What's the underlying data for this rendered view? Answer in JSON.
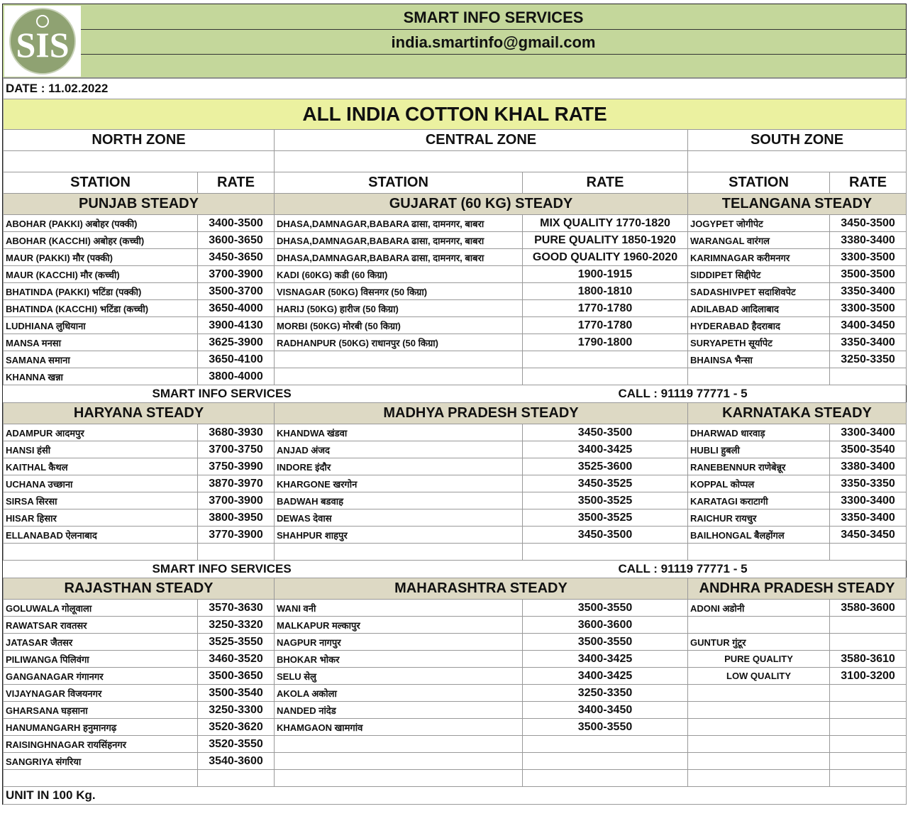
{
  "header": {
    "company": "SMART INFO SERVICES",
    "email": "india.smartinfo@gmail.com",
    "logo_text": "SIS"
  },
  "date": "DATE : 11.02.2022",
  "title": "ALL INDIA COTTON KHAL RATE",
  "zones": [
    "NORTH ZONE",
    "CENTRAL ZONE",
    "SOUTH ZONE"
  ],
  "columns": {
    "station": "STATION",
    "rate": "RATE"
  },
  "footer_left": "SMART INFO SERVICES",
  "footer_right": "CALL : 91119 77771 - 5",
  "unit": "UNIT IN 100 Kg.",
  "colors": {
    "header_green": "#c4d79b",
    "title_yellow": "#ebf1a0",
    "group_tan": "#ddd9c4"
  },
  "sections": [
    {
      "nrows": 10,
      "groups": [
        {
          "title": "PUNJAB STEADY",
          "rows": [
            [
              "ABOHAR  (PAKKI) अबोहर (पक्की)",
              "3400-3500"
            ],
            [
              "ABOHAR  (KACCHI) अबोहर (कच्ची)",
              "3600-3650"
            ],
            [
              "MAUR (PAKKI) मौर (पक्की)",
              "3450-3650"
            ],
            [
              "MAUR (KACCHI) मौर (कच्ची)",
              "3700-3900"
            ],
            [
              "BHATINDA (PAKKI) भटिंडा (पक्की)",
              "3500-3700"
            ],
            [
              "BHATINDA (KACCHI) भटिंडा (कच्ची)",
              "3650-4000"
            ],
            [
              "LUDHIANA लुधियाना",
              "3900-4130"
            ],
            [
              "MANSA मनसा",
              "3625-3900"
            ],
            [
              "SAMANA समाना",
              "3650-4100"
            ],
            [
              "KHANNA खन्ना",
              "3800-4000"
            ]
          ]
        },
        {
          "title": "GUJARAT (60 KG) STEADY",
          "rows": [
            [
              "DHASA,DAMNAGAR,BABARA ढासा, दामनगर, बाबरा",
              "MIX QUALITY  1770-1820"
            ],
            [
              "DHASA,DAMNAGAR,BABARA ढासा, दामनगर, बाबरा",
              "PURE QUALITY 1850-1920"
            ],
            [
              "DHASA,DAMNAGAR,BABARA ढासा, दामनगर, बाबरा",
              "GOOD QUALITY 1960-2020"
            ],
            [
              "KADI (60KG) कडी (60 किग्रा)",
              "1900-1915"
            ],
            [
              "VISNAGAR (50KG) विसनगर (50 किग्रा)",
              "1800-1810"
            ],
            [
              "HARIJ   (50KG) हारीज (50 किग्रा)",
              "1770-1780"
            ],
            [
              "MORBI  (50KG) मोरबी (50 किग्रा)",
              "1770-1780"
            ],
            [
              "RADHANPUR (50KG) राधानपुर (50 किग्रा)",
              "1790-1800"
            ]
          ]
        },
        {
          "title": "TELANGANA STEADY",
          "rows": [
            [
              "JOGYPET जोगीपेट",
              "3450-3500"
            ],
            [
              "WARANGAL वारंगल",
              "3380-3400"
            ],
            [
              "KARIMNAGAR करीमनगर",
              "3300-3500"
            ],
            [
              "SIDDIPET सिद्दीपेट",
              "3500-3500"
            ],
            [
              "SADASHIVPET सदाशिवपेट",
              "3350-3400"
            ],
            [
              "ADILABAD आदिलाबाद",
              "3300-3500"
            ],
            [
              "HYDERABAD हैदराबाद",
              "3400-3450"
            ],
            [
              "SURYAPETH सूर्यापेट",
              "3350-3400"
            ],
            [
              "BHAINSA भैन्सा",
              "3250-3350"
            ]
          ]
        }
      ]
    },
    {
      "nrows": 8,
      "groups": [
        {
          "title": "HARYANA STEADY",
          "rows": [
            [
              "ADAMPUR आदमपुर",
              "3680-3930"
            ],
            [
              "HANSI हंसी",
              "3700-3750"
            ],
            [
              "KAITHAL कैथल",
              "3750-3990"
            ],
            [
              "UCHANA उच्छाना",
              "3870-3970"
            ],
            [
              "SIRSA सिरसा",
              "3700-3900"
            ],
            [
              "HISAR हिसार",
              "3800-3950"
            ],
            [
              "ELLANABAD ऐलनाबाद",
              "3770-3900"
            ]
          ]
        },
        {
          "title": "MADHYA PRADESH STEADY",
          "rows": [
            [
              "KHANDWA खंडवा",
              "3450-3500"
            ],
            [
              "ANJAD अंजद",
              "3400-3425"
            ],
            [
              "INDORE इंदौर",
              "3525-3600"
            ],
            [
              "KHARGONE खरगोन",
              "3450-3525"
            ],
            [
              "BADWAH बडवाह",
              "3500-3525"
            ],
            [
              "DEWAS देवास",
              "3500-3525"
            ],
            [
              "SHAHPUR शाहपुर",
              "3450-3500"
            ]
          ]
        },
        {
          "title": "KARNATAKA STEADY",
          "rows": [
            [
              "DHARWAD धारवाड़",
              "3300-3400"
            ],
            [
              "HUBLI हुबली",
              "3500-3540"
            ],
            [
              "RANEBENNUR राणेबेन्नूर",
              "3380-3400"
            ],
            [
              "KOPPAL कोप्पल",
              "3350-3350"
            ],
            [
              "KARATAGI कराटागी",
              "3300-3400"
            ],
            [
              "RAICHUR रायचुर",
              "3350-3400"
            ],
            [
              "BAILHONGAL बैलहोंगल",
              "3450-3450"
            ]
          ]
        }
      ]
    },
    {
      "nrows": 11,
      "groups": [
        {
          "title": "RAJASTHAN STEADY",
          "rows": [
            [
              "GOLUWALA गोलूवाला",
              "3570-3630"
            ],
            [
              "RAWATSAR रावतसर",
              "3250-3320"
            ],
            [
              "JATASAR  जैतसर",
              "3525-3550"
            ],
            [
              "PILIWANGA पिलिवंगा",
              "3460-3520"
            ],
            [
              "GANGANAGAR गंगानगर",
              "3500-3650"
            ],
            [
              "VIJAYNAGAR विजयनगर",
              "3500-3540"
            ],
            [
              "GHARSANA घड़साना",
              "3250-3300"
            ],
            [
              "HANUMANGARH हनुमानगढ़",
              "3520-3620"
            ],
            [
              "RAISINGHNAGAR रायसिंहनगर",
              "3520-3550"
            ],
            [
              "SANGRIYA संगरिया",
              "3540-3600"
            ]
          ]
        },
        {
          "title": "MAHARASHTRA STEADY",
          "rows": [
            [
              "WANI वनी",
              "3500-3550"
            ],
            [
              "MALKAPUR मल्कापुर",
              "3600-3600"
            ],
            [
              "NAGPUR नागपुर",
              "3500-3550"
            ],
            [
              "BHOKAR भोकर",
              "3400-3425"
            ],
            [
              "SELU सेलु",
              "3400-3425"
            ],
            [
              "AKOLA अकोला",
              "3250-3350"
            ],
            [
              "NANDED नांदेड",
              "3400-3450"
            ],
            [
              "KHAMGAON खामगांव",
              "3500-3550"
            ]
          ]
        },
        {
          "title": "ANDHRA PRADESH STEADY",
          "rows": [
            [
              "ADONI अडोनी",
              "3580-3600"
            ],
            [
              null,
              null
            ],
            [
              "GUNTUR गुंटूर",
              null
            ],
            [
              "PURE QUALITY",
              "3580-3610"
            ],
            [
              "LOW QUALITY",
              "3100-3200"
            ]
          ]
        }
      ]
    }
  ]
}
